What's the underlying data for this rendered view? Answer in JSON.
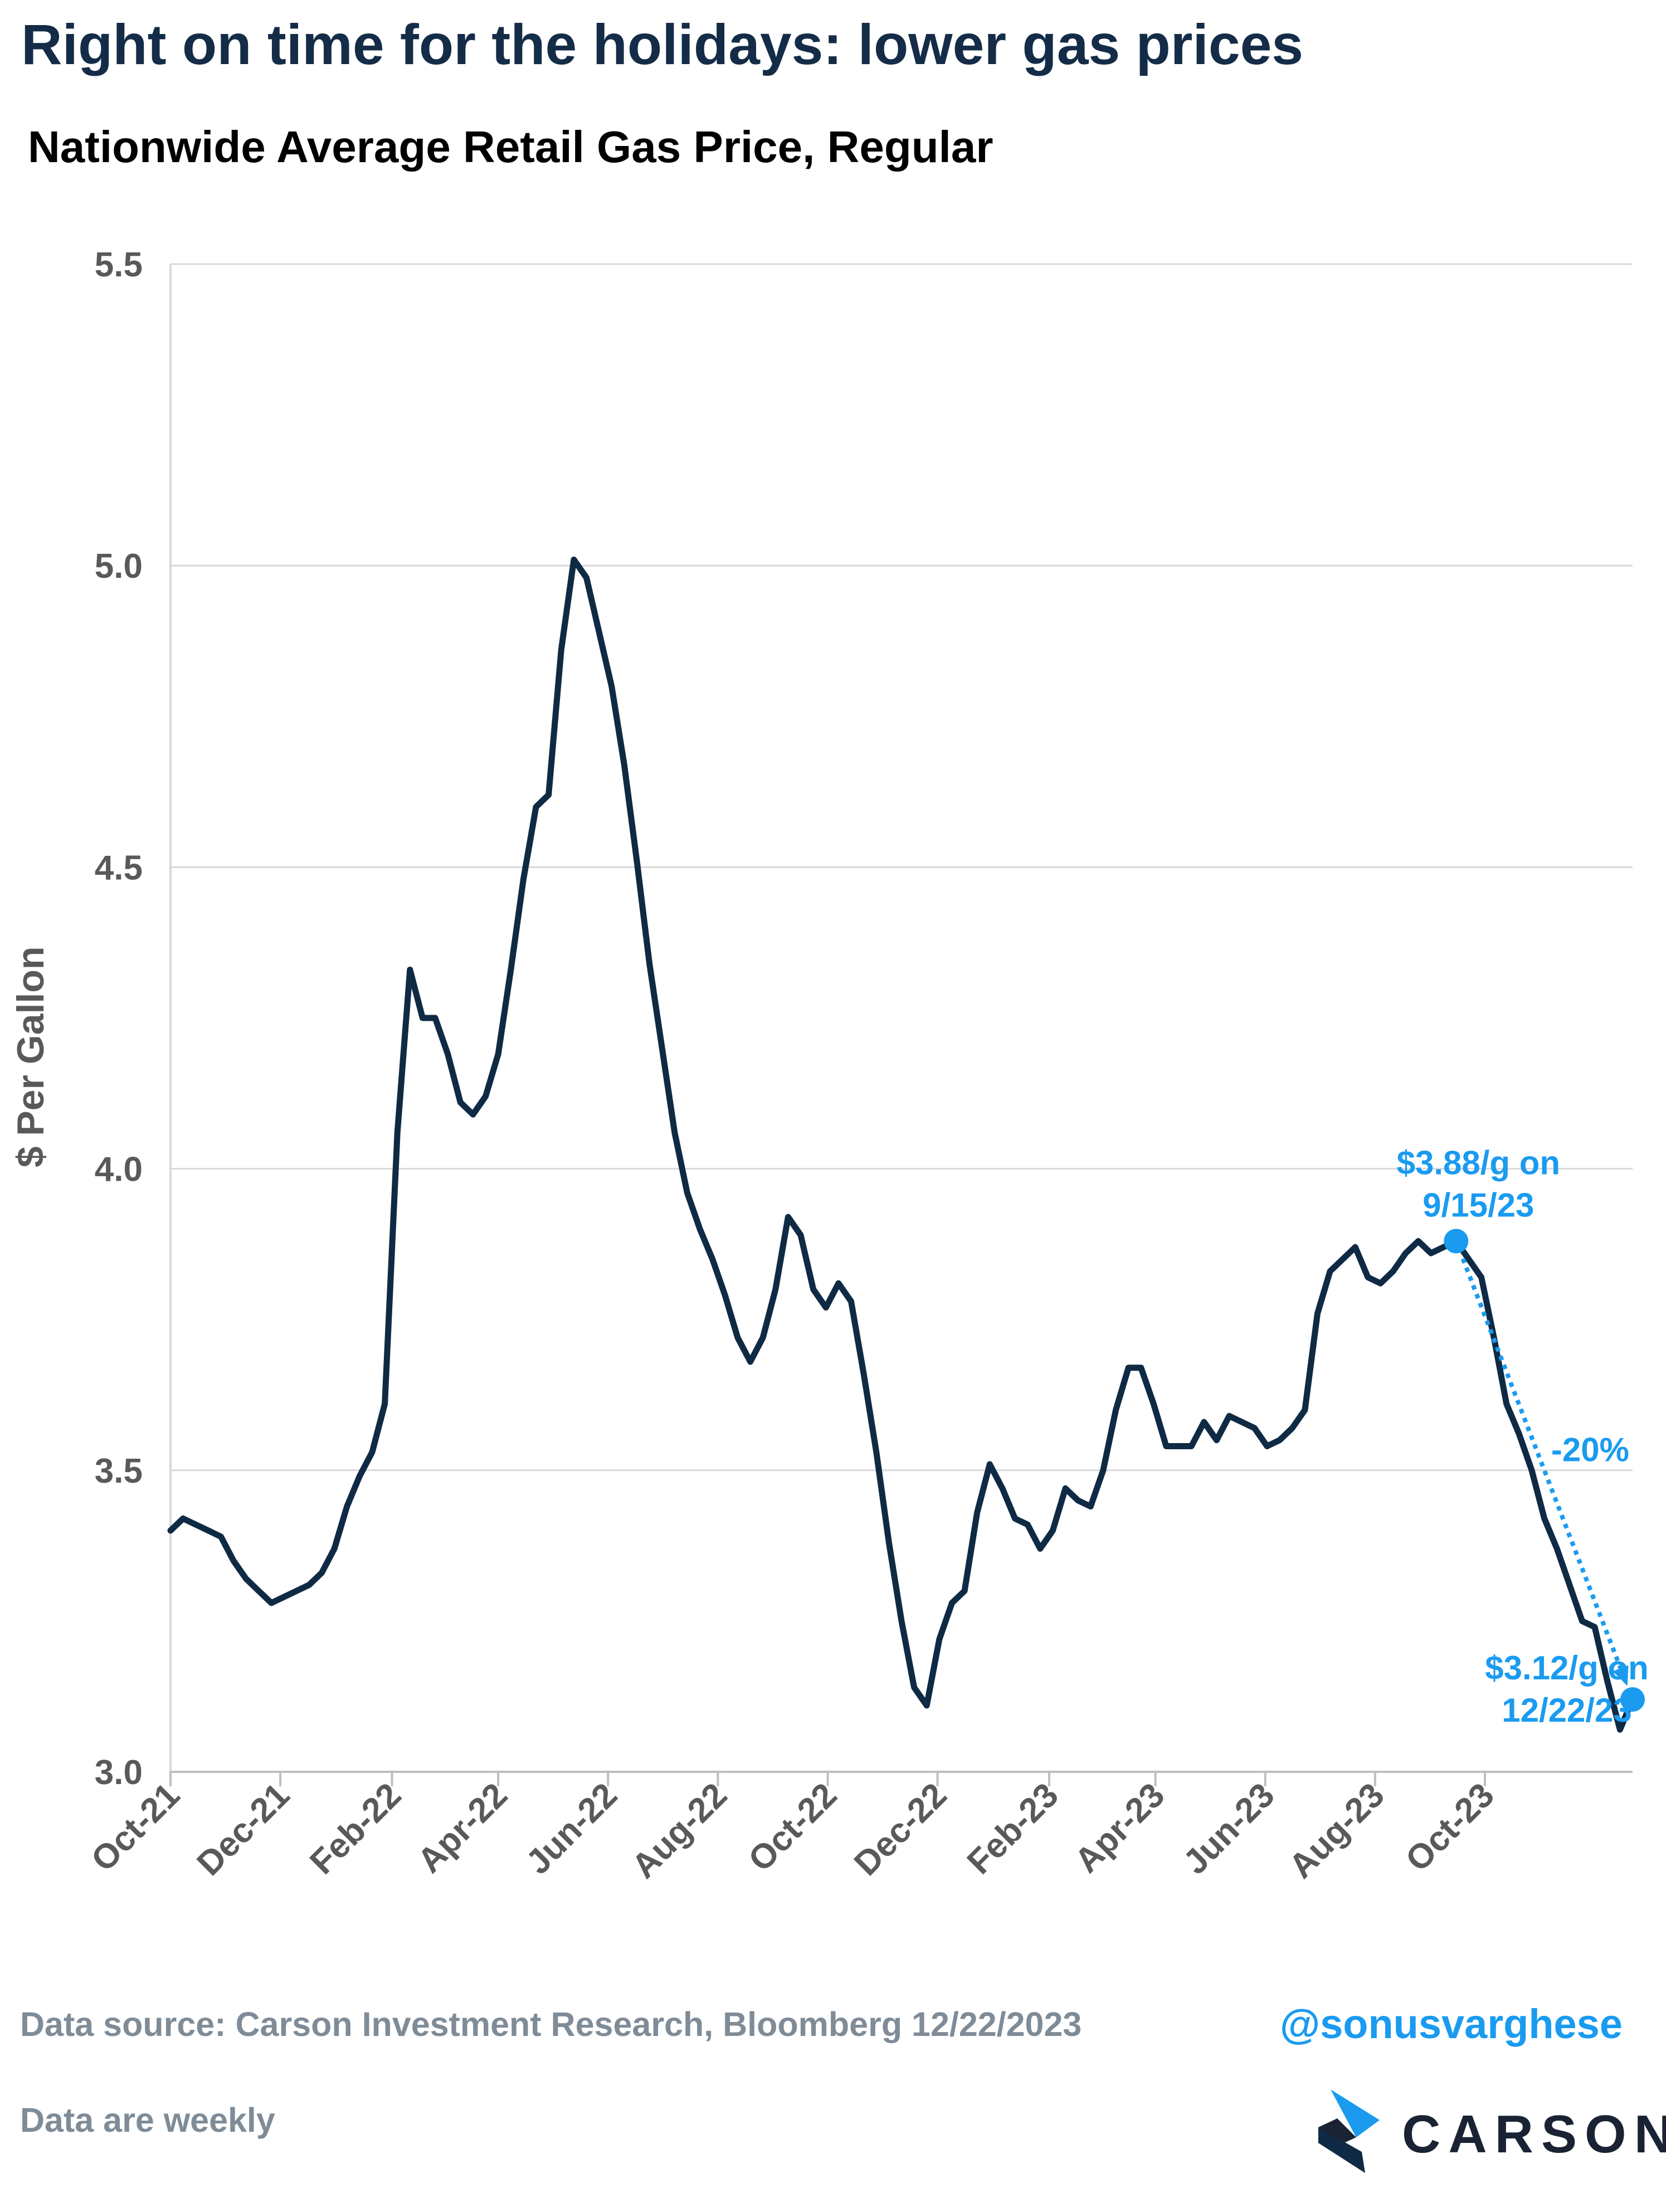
{
  "title": "Right on time for the holidays: lower gas prices",
  "subtitle": "Nationwide Average Retail Gas Price, Regular",
  "colors": {
    "line": "#0f2a44",
    "accent": "#1a9bf0",
    "grid": "#d9d9d9",
    "axis_text": "#595959",
    "footer_text": "#7f8c97"
  },
  "chart_data": {
    "type": "line",
    "ylabel": "$ Per Gallon",
    "ylim": [
      3.0,
      5.5
    ],
    "yticks": [
      "3.0",
      "3.5",
      "4.0",
      "4.5",
      "5.0",
      "5.5"
    ],
    "x_start": "2021-10-01",
    "x_end": "2023-12-22",
    "xticks": [
      {
        "date": "2021-10-01",
        "label": "Oct-21"
      },
      {
        "date": "2021-12-01",
        "label": "Dec-21"
      },
      {
        "date": "2022-02-01",
        "label": "Feb-22"
      },
      {
        "date": "2022-04-01",
        "label": "Apr-22"
      },
      {
        "date": "2022-06-01",
        "label": "Jun-22"
      },
      {
        "date": "2022-08-01",
        "label": "Aug-22"
      },
      {
        "date": "2022-10-01",
        "label": "Oct-22"
      },
      {
        "date": "2022-12-01",
        "label": "Dec-22"
      },
      {
        "date": "2023-02-01",
        "label": "Feb-23"
      },
      {
        "date": "2023-04-01",
        "label": "Apr-23"
      },
      {
        "date": "2023-06-01",
        "label": "Jun-23"
      },
      {
        "date": "2023-08-01",
        "label": "Aug-23"
      },
      {
        "date": "2023-10-01",
        "label": "Oct-23"
      }
    ],
    "grid": true,
    "series": [
      {
        "values": [
          [
            "2021-10-01",
            3.4
          ],
          [
            "2021-10-08",
            3.42
          ],
          [
            "2021-10-15",
            3.41
          ],
          [
            "2021-10-22",
            3.4
          ],
          [
            "2021-10-29",
            3.39
          ],
          [
            "2021-11-05",
            3.35
          ],
          [
            "2021-11-12",
            3.32
          ],
          [
            "2021-11-19",
            3.3
          ],
          [
            "2021-11-26",
            3.28
          ],
          [
            "2021-12-03",
            3.29
          ],
          [
            "2021-12-10",
            3.3
          ],
          [
            "2021-12-17",
            3.31
          ],
          [
            "2021-12-24",
            3.33
          ],
          [
            "2021-12-31",
            3.37
          ],
          [
            "2022-01-07",
            3.44
          ],
          [
            "2022-01-14",
            3.49
          ],
          [
            "2022-01-21",
            3.53
          ],
          [
            "2022-01-28",
            3.61
          ],
          [
            "2022-02-04",
            4.06
          ],
          [
            "2022-02-11",
            4.33
          ],
          [
            "2022-02-18",
            4.25
          ],
          [
            "2022-02-25",
            4.25
          ],
          [
            "2022-03-04",
            4.19
          ],
          [
            "2022-03-11",
            4.11
          ],
          [
            "2022-03-18",
            4.09
          ],
          [
            "2022-03-25",
            4.12
          ],
          [
            "2022-04-01",
            4.19
          ],
          [
            "2022-04-08",
            4.33
          ],
          [
            "2022-04-15",
            4.48
          ],
          [
            "2022-04-22",
            4.6
          ],
          [
            "2022-04-29",
            4.62
          ],
          [
            "2022-05-06",
            4.86
          ],
          [
            "2022-05-13",
            5.01
          ],
          [
            "2022-05-20",
            4.98
          ],
          [
            "2022-05-27",
            4.89
          ],
          [
            "2022-06-03",
            4.8
          ],
          [
            "2022-06-10",
            4.67
          ],
          [
            "2022-06-17",
            4.51
          ],
          [
            "2022-06-24",
            4.34
          ],
          [
            "2022-07-01",
            4.2
          ],
          [
            "2022-07-08",
            4.06
          ],
          [
            "2022-07-15",
            3.96
          ],
          [
            "2022-07-22",
            3.9
          ],
          [
            "2022-07-29",
            3.85
          ],
          [
            "2022-08-05",
            3.79
          ],
          [
            "2022-08-12",
            3.72
          ],
          [
            "2022-08-19",
            3.68
          ],
          [
            "2022-08-26",
            3.72
          ],
          [
            "2022-09-02",
            3.8
          ],
          [
            "2022-09-09",
            3.92
          ],
          [
            "2022-09-16",
            3.89
          ],
          [
            "2022-09-23",
            3.8
          ],
          [
            "2022-09-30",
            3.77
          ],
          [
            "2022-10-07",
            3.81
          ],
          [
            "2022-10-14",
            3.78
          ],
          [
            "2022-10-21",
            3.66
          ],
          [
            "2022-10-28",
            3.53
          ],
          [
            "2022-11-04",
            3.38
          ],
          [
            "2022-11-11",
            3.25
          ],
          [
            "2022-11-18",
            3.14
          ],
          [
            "2022-11-25",
            3.11
          ],
          [
            "2022-12-02",
            3.22
          ],
          [
            "2022-12-09",
            3.28
          ],
          [
            "2022-12-16",
            3.3
          ],
          [
            "2022-12-23",
            3.43
          ],
          [
            "2022-12-30",
            3.51
          ],
          [
            "2023-01-06",
            3.47
          ],
          [
            "2023-01-13",
            3.42
          ],
          [
            "2023-01-20",
            3.41
          ],
          [
            "2023-01-27",
            3.37
          ],
          [
            "2023-02-03",
            3.4
          ],
          [
            "2023-02-10",
            3.47
          ],
          [
            "2023-02-17",
            3.45
          ],
          [
            "2023-02-24",
            3.44
          ],
          [
            "2023-03-03",
            3.5
          ],
          [
            "2023-03-10",
            3.6
          ],
          [
            "2023-03-17",
            3.67
          ],
          [
            "2023-03-24",
            3.67
          ],
          [
            "2023-03-31",
            3.61
          ],
          [
            "2023-04-07",
            3.54
          ],
          [
            "2023-04-14",
            3.54
          ],
          [
            "2023-04-21",
            3.54
          ],
          [
            "2023-04-28",
            3.58
          ],
          [
            "2023-05-05",
            3.55
          ],
          [
            "2023-05-12",
            3.59
          ],
          [
            "2023-05-19",
            3.58
          ],
          [
            "2023-05-26",
            3.57
          ],
          [
            "2023-06-02",
            3.54
          ],
          [
            "2023-06-09",
            3.55
          ],
          [
            "2023-06-16",
            3.57
          ],
          [
            "2023-06-23",
            3.6
          ],
          [
            "2023-06-30",
            3.76
          ],
          [
            "2023-07-07",
            3.83
          ],
          [
            "2023-07-14",
            3.85
          ],
          [
            "2023-07-21",
            3.87
          ],
          [
            "2023-07-28",
            3.82
          ],
          [
            "2023-08-04",
            3.81
          ],
          [
            "2023-08-11",
            3.83
          ],
          [
            "2023-08-18",
            3.86
          ],
          [
            "2023-08-25",
            3.88
          ],
          [
            "2023-09-01",
            3.86
          ],
          [
            "2023-09-08",
            3.87
          ],
          [
            "2023-09-15",
            3.88
          ],
          [
            "2023-09-22",
            3.85
          ],
          [
            "2023-09-29",
            3.82
          ],
          [
            "2023-10-06",
            3.72
          ],
          [
            "2023-10-13",
            3.61
          ],
          [
            "2023-10-20",
            3.56
          ],
          [
            "2023-10-27",
            3.5
          ],
          [
            "2023-11-03",
            3.42
          ],
          [
            "2023-11-10",
            3.37
          ],
          [
            "2023-11-17",
            3.31
          ],
          [
            "2023-11-24",
            3.25
          ],
          [
            "2023-12-01",
            3.24
          ],
          [
            "2023-12-08",
            3.15
          ],
          [
            "2023-12-15",
            3.07
          ],
          [
            "2023-12-22",
            3.12
          ]
        ]
      }
    ],
    "annotations": {
      "peak_point": {
        "date": "2023-09-15",
        "value": 3.88,
        "label_line1": "$3.88/g on",
        "label_line2": "9/15/23"
      },
      "end_point": {
        "date": "2023-12-22",
        "value": 3.12,
        "label_line1": "$3.12/g on",
        "label_line2": "12/22/23"
      },
      "change_label": "-20%"
    }
  },
  "footer": {
    "source": "Data source: Carson Investment Research, Bloomberg   12/22/2023",
    "note": "Data are weekly",
    "handle": "@sonusvarghese",
    "brand_name": "CARSON"
  }
}
